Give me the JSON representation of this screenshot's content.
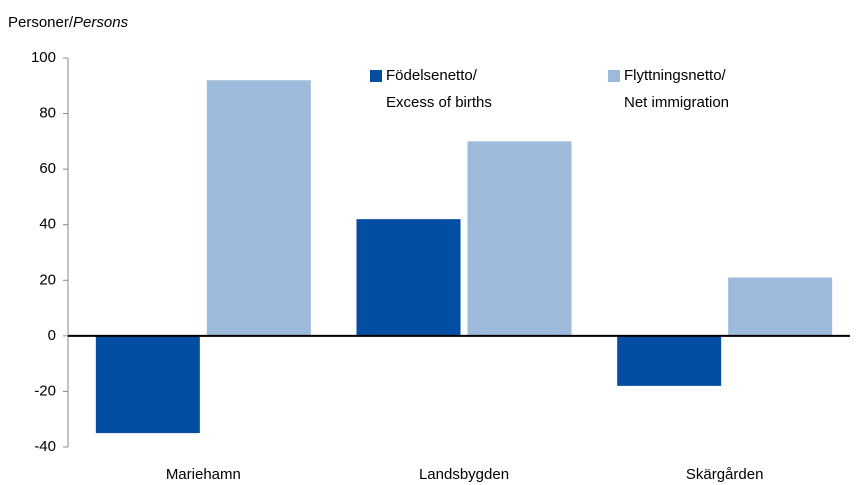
{
  "chart_data": {
    "type": "bar",
    "ylabel": "Personer/",
    "ylabel_en": "Persons",
    "categories": [
      "Mariehamn",
      "Landsbygden",
      "Skärgården"
    ],
    "series": [
      {
        "name": "Födelsenetto/\nExcess of births",
        "color": "#034ea2",
        "values": [
          -35,
          42,
          -18
        ]
      },
      {
        "name": "Flyttningsnetto/\nNet immigration",
        "color": "#9dbadb",
        "values": [
          92,
          70,
          21
        ]
      }
    ],
    "ylim": [
      -40,
      100
    ],
    "yticks": [
      -40,
      -20,
      0,
      20,
      40,
      60,
      80,
      100
    ],
    "grid": false
  }
}
